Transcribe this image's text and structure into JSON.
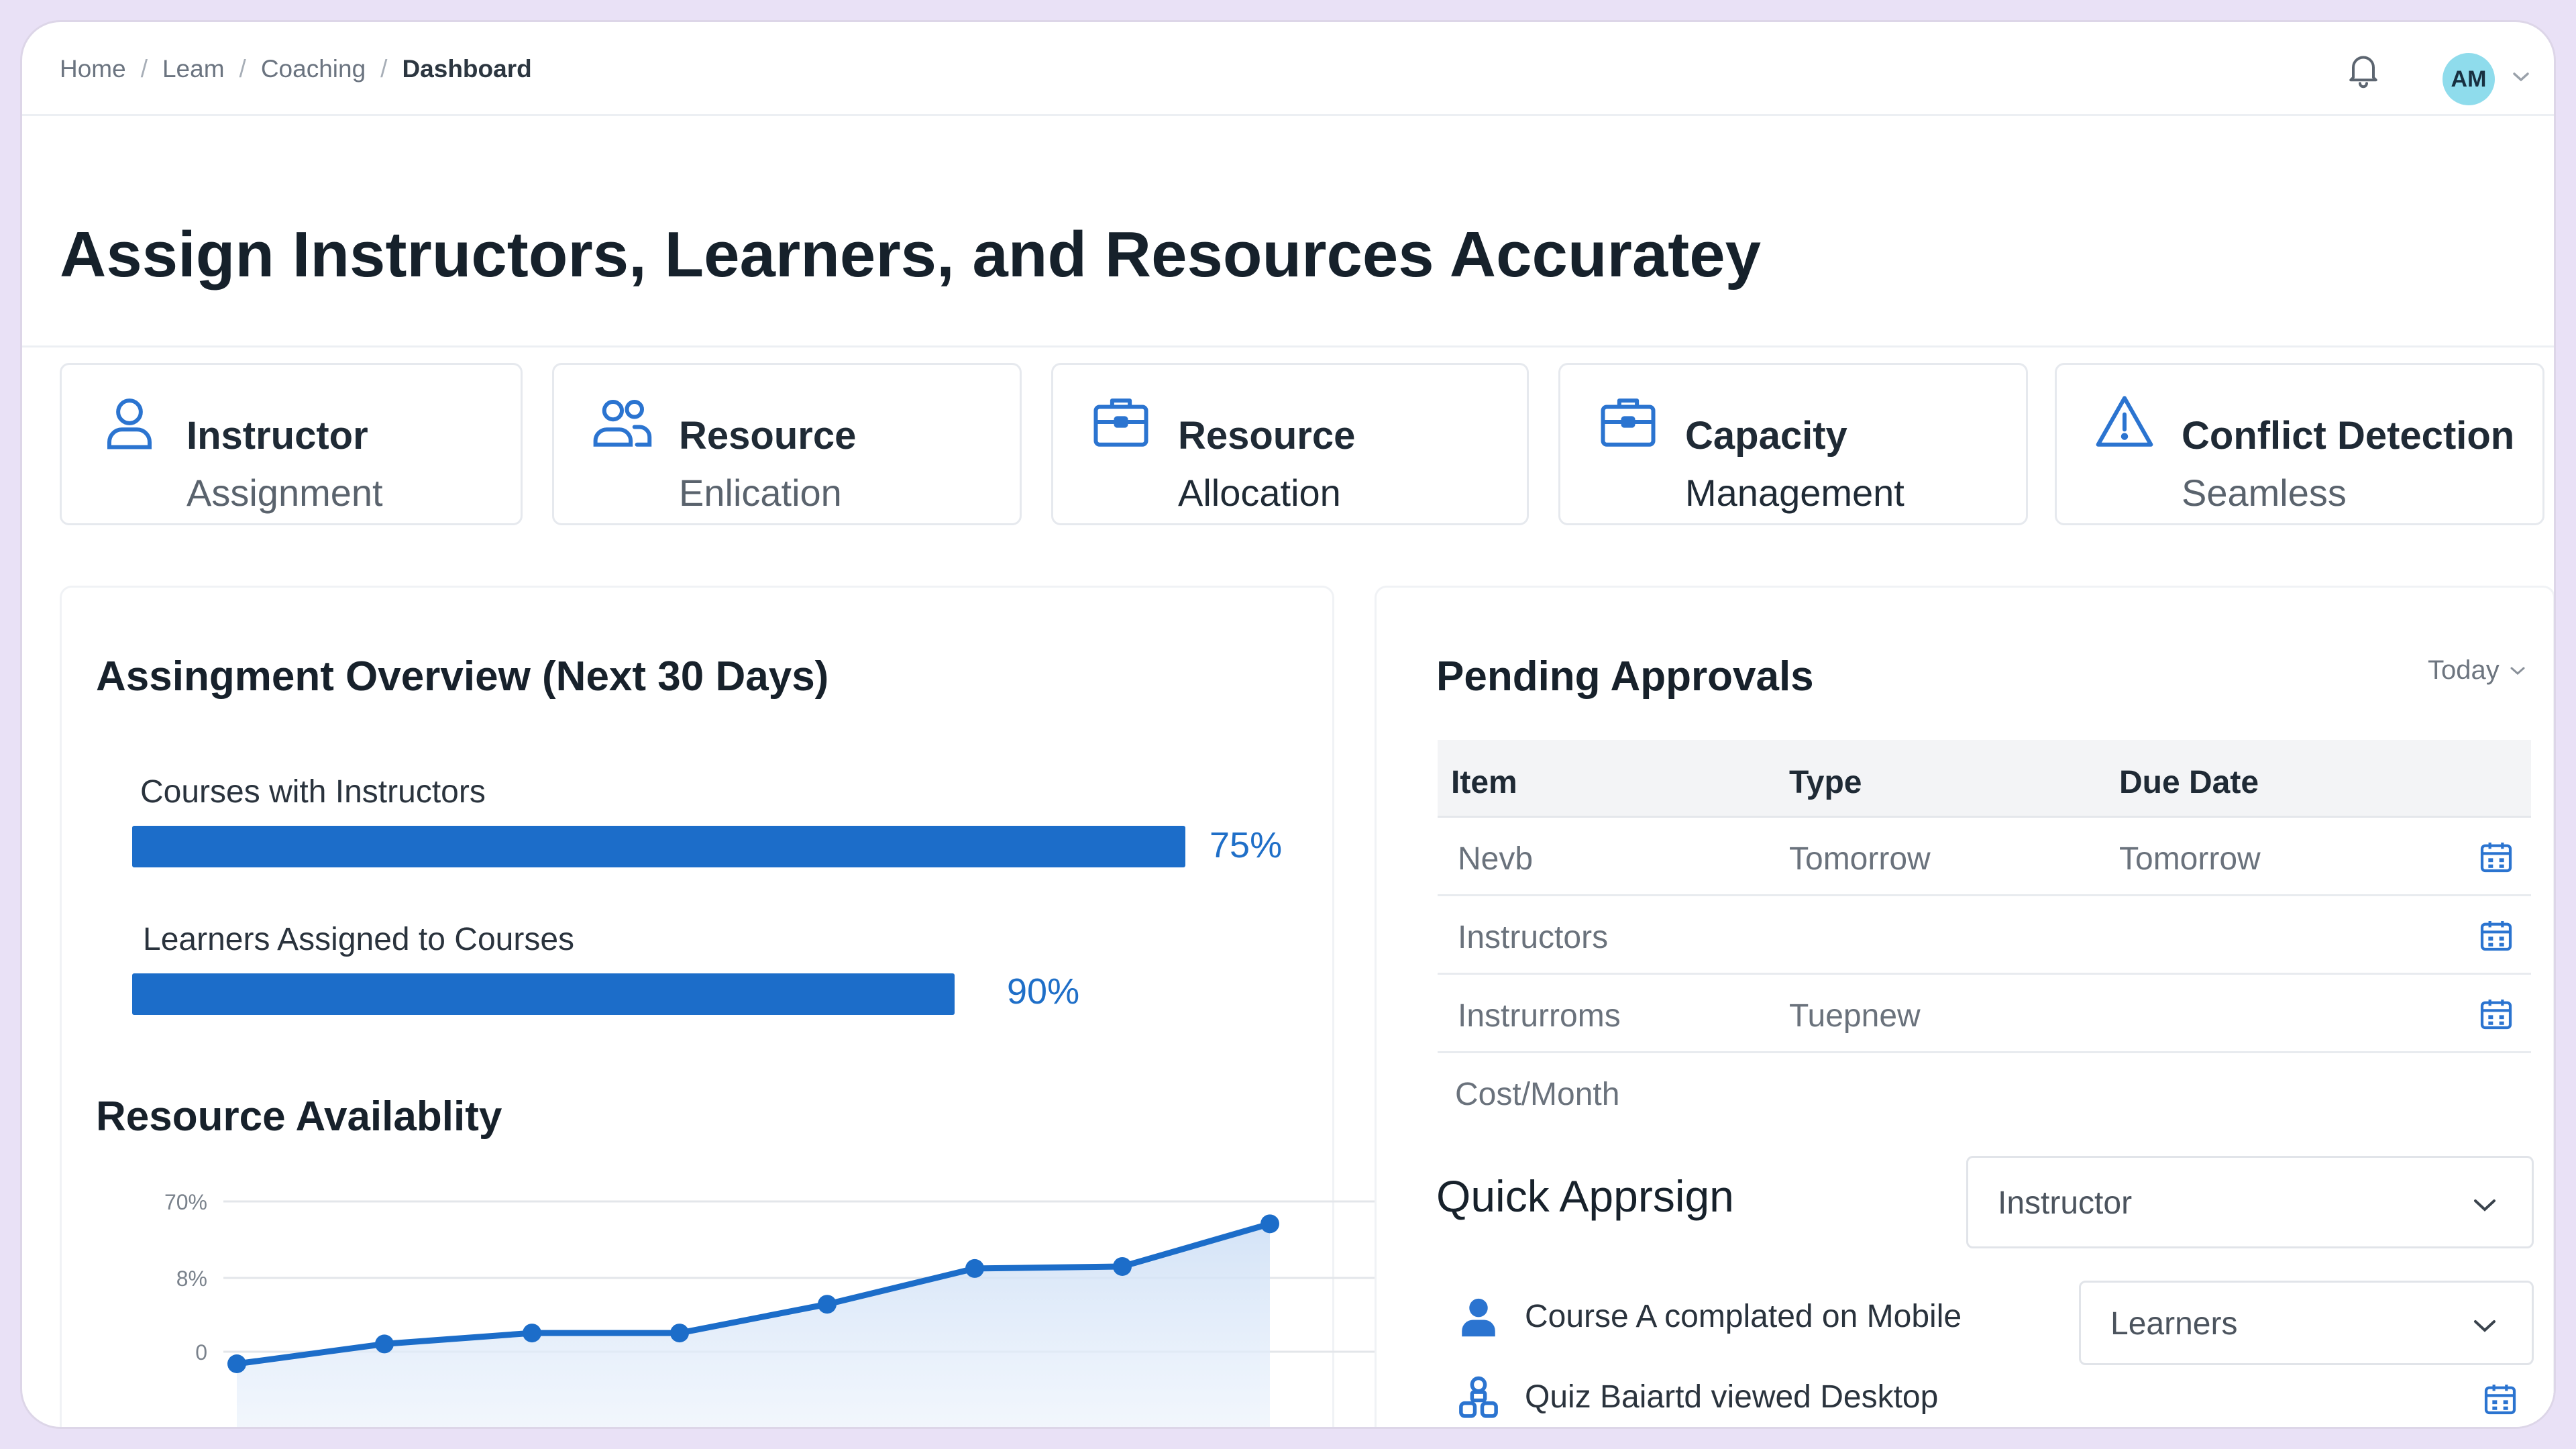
{
  "breadcrumb": [
    "Home",
    "Leam",
    "Coaching",
    "Dashboard"
  ],
  "user": {
    "initials": "AM"
  },
  "page_title": "Assign Instructors, Learners, and Resources Accuratey",
  "features": [
    {
      "line1": "Instructor",
      "line2": "Assignment",
      "icon": "user-icon"
    },
    {
      "line1": "Resource",
      "line2": "Enlication",
      "icon": "users-icon"
    },
    {
      "line1": "Resource",
      "line2": "Allocation",
      "icon": "briefcase-icon"
    },
    {
      "line1": "Capacity",
      "line2": "Management",
      "icon": "briefcase-icon"
    },
    {
      "line1": "Conflict Detection",
      "line2": "Seamless",
      "icon": "warning-icon"
    }
  ],
  "overview": {
    "title": "Assingment Overview (Next 30 Days)",
    "bars": [
      {
        "label": "Courses with Instructors",
        "value": 75,
        "display": "75%"
      },
      {
        "label": "Learners Assigned to Courses",
        "value": 90,
        "display": "90%"
      }
    ]
  },
  "availability": {
    "title": "Resource Availablity"
  },
  "chart_data": {
    "type": "area",
    "title": "Resource Availablity",
    "ytick_labels": [
      "70%",
      "8%",
      "0"
    ],
    "x": [
      1,
      2,
      3,
      4,
      5,
      6,
      7,
      8
    ],
    "series": [
      {
        "values": [
          0,
          0.2,
          0.31,
          0.31,
          0.6,
          0.96,
          0.98,
          1.41
        ]
      }
    ],
    "color": "#1c6dc9",
    "grid": true
  },
  "approvals": {
    "title": "Pending Approvals",
    "filter": "Today",
    "columns": [
      "Item",
      "Type",
      "Due Date"
    ],
    "rows": [
      {
        "item": "Nevb",
        "type": "Tomorrow",
        "due": "Tomorrow",
        "calendar": true
      },
      {
        "item": "Instructors",
        "type": "",
        "due": "",
        "calendar": true
      },
      {
        "item": "Instrurroms",
        "type": "Tuepnew",
        "due": "",
        "calendar": true
      },
      {
        "item": "Cost/Month",
        "type": "",
        "due": "",
        "calendar": false
      }
    ]
  },
  "quick_assign": {
    "title": "Quick Apprsign",
    "instructor_select": "Instructor",
    "learners_select": "Learners",
    "activities": [
      {
        "text": "Course A complated on Mobile",
        "icon": "person-icon"
      },
      {
        "text": "Quiz Baiartd viewed Desktop",
        "icon": "group-icon"
      }
    ]
  }
}
